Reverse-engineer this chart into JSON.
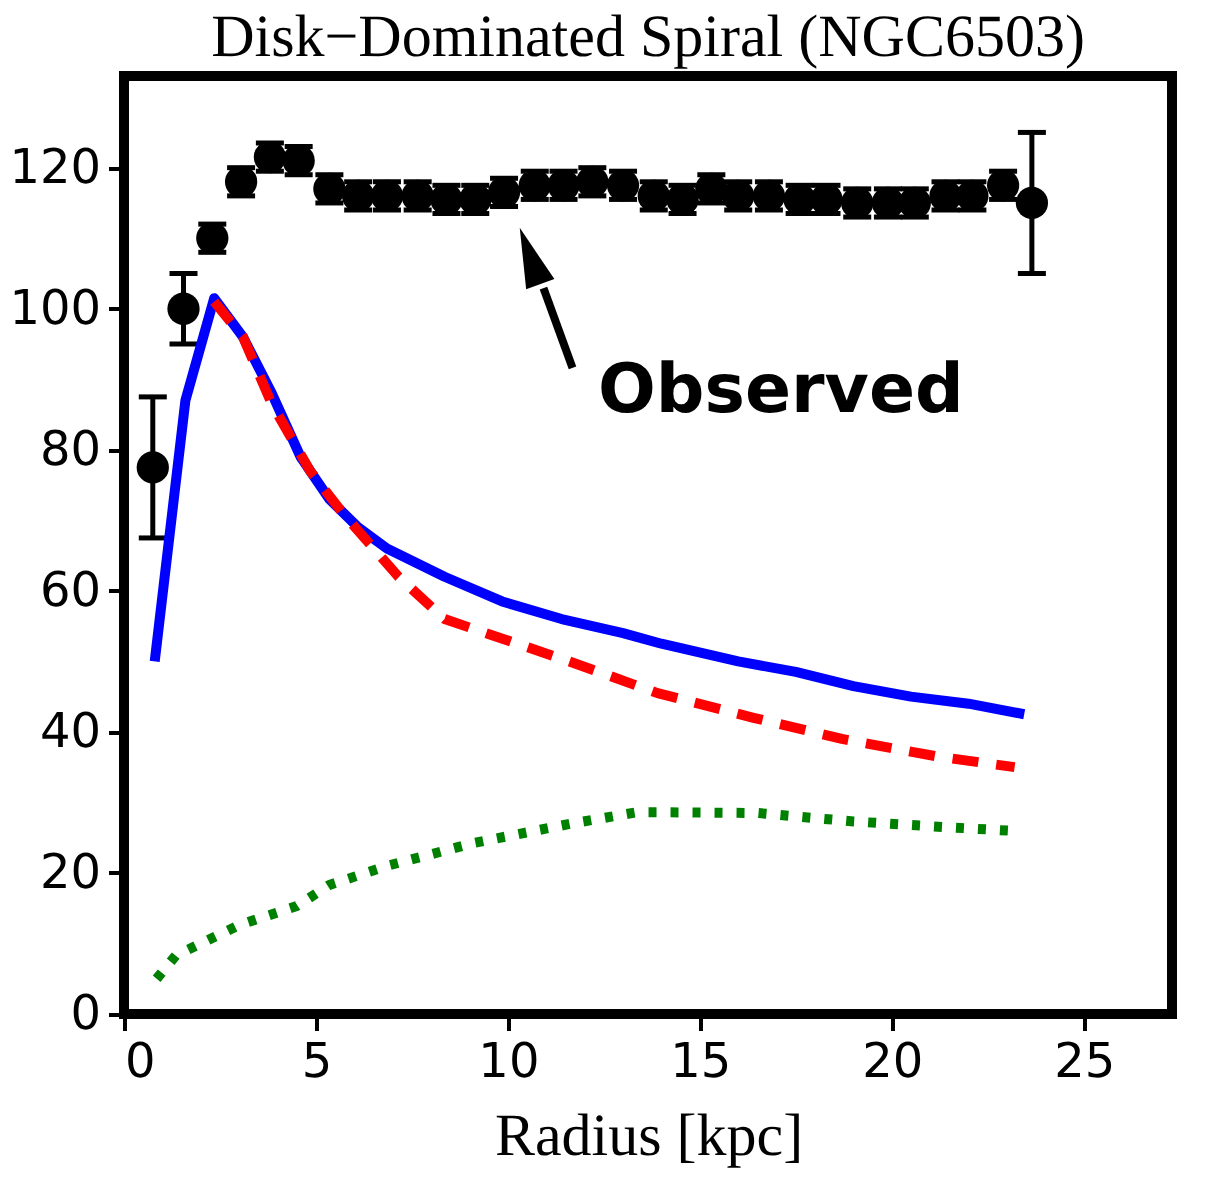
{
  "chart_data": {
    "type": "line",
    "title": "Disk−Dominated Spiral (NGC6503)",
    "xlabel": "Radius [kpc]",
    "xlim": [
      0,
      27.3
    ],
    "ylim": [
      0,
      133
    ],
    "xticks": [
      0,
      5,
      10,
      15,
      20,
      25
    ],
    "yticks": [
      0,
      20,
      40,
      60,
      80,
      100,
      120
    ],
    "grid": false,
    "annotations": [
      "Observed"
    ],
    "series": [
      {
        "type": "scatter",
        "marker": "circle",
        "color": "#000000",
        "x": [
          0.75,
          1.55,
          2.3,
          3.05,
          3.8,
          4.55,
          5.35,
          6.1,
          6.85,
          7.65,
          8.4,
          9.15,
          9.9,
          10.7,
          11.45,
          12.2,
          13,
          13.8,
          14.55,
          15.3,
          16,
          16.8,
          17.6,
          18.3,
          19.1,
          19.9,
          20.6,
          21.4,
          22.1,
          22.9,
          23.65
        ],
        "values": [
          77.5,
          100,
          110,
          118,
          121.5,
          121,
          117,
          116,
          116,
          116,
          115.5,
          115.5,
          116.5,
          117.5,
          117.5,
          118,
          117.5,
          116,
          115.5,
          117,
          116,
          116,
          115.5,
          115.5,
          115,
          115,
          115,
          116,
          116,
          117.5,
          115
        ],
        "errors": [
          10,
          5,
          2,
          2,
          2,
          2,
          2,
          2,
          2,
          2,
          2,
          2,
          2,
          2,
          2,
          2,
          2,
          2,
          2,
          2,
          2,
          2,
          2,
          2,
          2,
          2,
          2,
          2,
          2,
          2,
          10
        ]
      },
      {
        "type": "line",
        "line_style": "solid",
        "color": "#0000ff",
        "x": [
          0.8,
          1.6,
          2.35,
          3.1,
          3.85,
          4.6,
          5.35,
          6.1,
          6.85,
          8.35,
          9.85,
          11.4,
          13,
          14,
          16,
          17.5,
          19,
          20.5,
          22,
          23.45
        ],
        "values": [
          50,
          87,
          101.5,
          96,
          88,
          79,
          73,
          69,
          66,
          62,
          58.5,
          56,
          54,
          52.5,
          50,
          48.5,
          46.5,
          45,
          44,
          42.5
        ]
      },
      {
        "type": "line",
        "line_style": "dashed",
        "color": "#ff0000",
        "x": [
          2.35,
          3.1,
          3.85,
          4.85,
          5.7,
          7.15,
          8.35,
          11.6,
          13.9,
          16.4,
          18.7,
          21.2,
          23.2
        ],
        "values": [
          101,
          96,
          86.5,
          77,
          71,
          62,
          56,
          50,
          45.5,
          42,
          39,
          36.5,
          35
        ]
      },
      {
        "type": "line",
        "line_style": "dotted",
        "color": "#008000",
        "x": [
          0.85,
          1.35,
          3,
          4.5,
          5.35,
          6.85,
          9.15,
          11.65,
          13.35,
          14.1,
          16.5,
          19,
          21.4,
          23.05
        ],
        "values": [
          5,
          8.3,
          12.6,
          15.3,
          18.3,
          21,
          24.3,
          27,
          28.6,
          28.6,
          28.5,
          27.3,
          26.5,
          26
        ]
      }
    ]
  }
}
